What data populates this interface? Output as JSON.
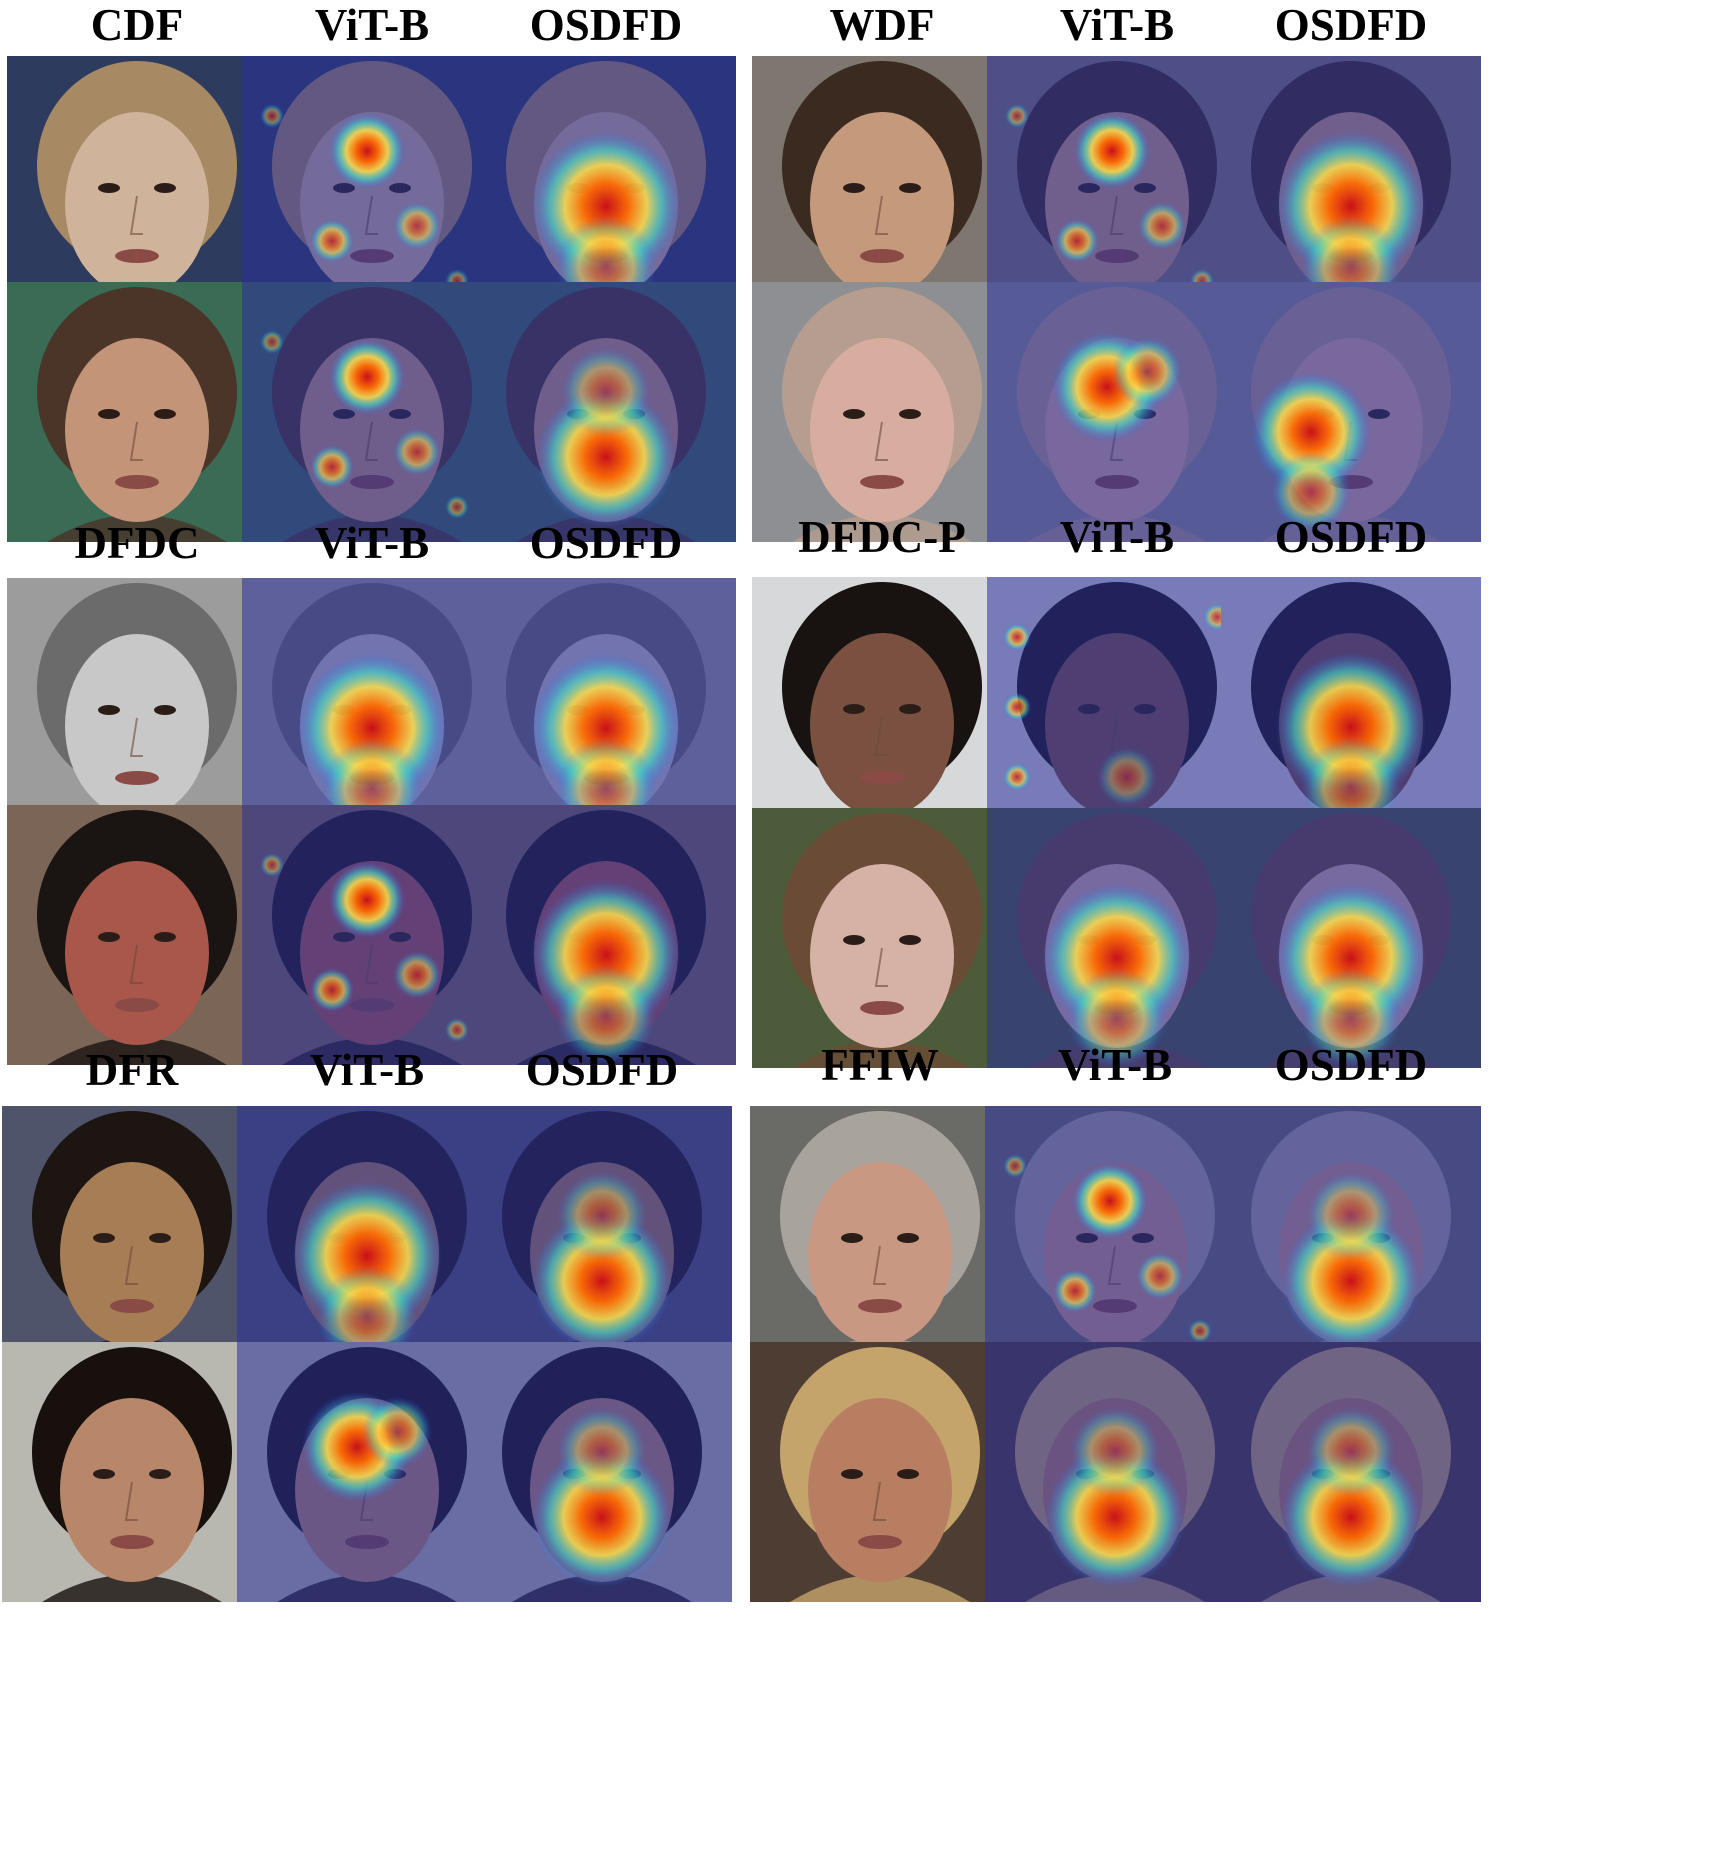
{
  "groups": [
    {
      "id": "cdf",
      "labels": [
        "CDF",
        "ViT-B",
        "OSDFD"
      ],
      "rows": [
        {
          "bg": "#2d3c5e",
          "skin": "#cfb39b",
          "hair": "#a78a64",
          "heat_vit": "scattered",
          "heat_osdfd": "center"
        },
        {
          "bg": "#3a6b55",
          "skin": "#c49478",
          "hair": "#4a3528",
          "heat_vit": "scattered",
          "heat_osdfd": "lower"
        }
      ]
    },
    {
      "id": "wdf",
      "labels": [
        "WDF",
        "ViT-B",
        "OSDFD"
      ],
      "rows": [
        {
          "bg": "#7d7770",
          "skin": "#c59a7c",
          "hair": "#3b2a20",
          "heat_vit": "scattered",
          "heat_osdfd": "center"
        },
        {
          "bg": "#8d8f93",
          "skin": "#d7ada0",
          "hair": "#b69d8f",
          "heat_vit": "upper",
          "heat_osdfd": "side"
        }
      ]
    },
    {
      "id": "dfdc",
      "labels": [
        "DFDC",
        "ViT-B",
        "OSDFD"
      ],
      "rows": [
        {
          "bg": "#9c9c9c",
          "skin": "#c8c8c8",
          "hair": "#6b6b6b",
          "heat_vit": "center",
          "heat_osdfd": "center"
        },
        {
          "bg": "#7b6556",
          "skin": "#a8574a",
          "hair": "#1a1412",
          "heat_vit": "scattered",
          "heat_osdfd": "center"
        }
      ]
    },
    {
      "id": "dfdc-p",
      "labels": [
        "DFDC-P",
        "ViT-B",
        "OSDFD"
      ],
      "rows": [
        {
          "bg": "#d7d8da",
          "skin": "#7a5140",
          "hair": "#181311",
          "heat_vit": "edge",
          "heat_osdfd": "center"
        },
        {
          "bg": "#4c5c3a",
          "skin": "#d6b2a6",
          "hair": "#6a4b36",
          "heat_vit": "center",
          "heat_osdfd": "center"
        }
      ]
    },
    {
      "id": "dfr",
      "labels": [
        "DFR",
        "ViT-B",
        "OSDFD"
      ],
      "rows": [
        {
          "bg": "#50546a",
          "skin": "#a77d55",
          "hair": "#1c1512",
          "heat_vit": "center",
          "heat_osdfd": "lower"
        },
        {
          "bg": "#b8b8b0",
          "skin": "#b8876a",
          "hair": "#17100d",
          "heat_vit": "upper",
          "heat_osdfd": "lower"
        }
      ]
    },
    {
      "id": "ffiw",
      "labels": [
        "FFIW",
        "ViT-B",
        "OSDFD"
      ],
      "rows": [
        {
          "bg": "#6a6b66",
          "skin": "#c99883",
          "hair": "#a8a49d",
          "heat_vit": "scattered",
          "heat_osdfd": "lower"
        },
        {
          "bg": "#4d3d33",
          "skin": "#b87e62",
          "hair": "#c5a46c",
          "heat_vit": "lower",
          "heat_osdfd": "lower"
        }
      ]
    }
  ]
}
